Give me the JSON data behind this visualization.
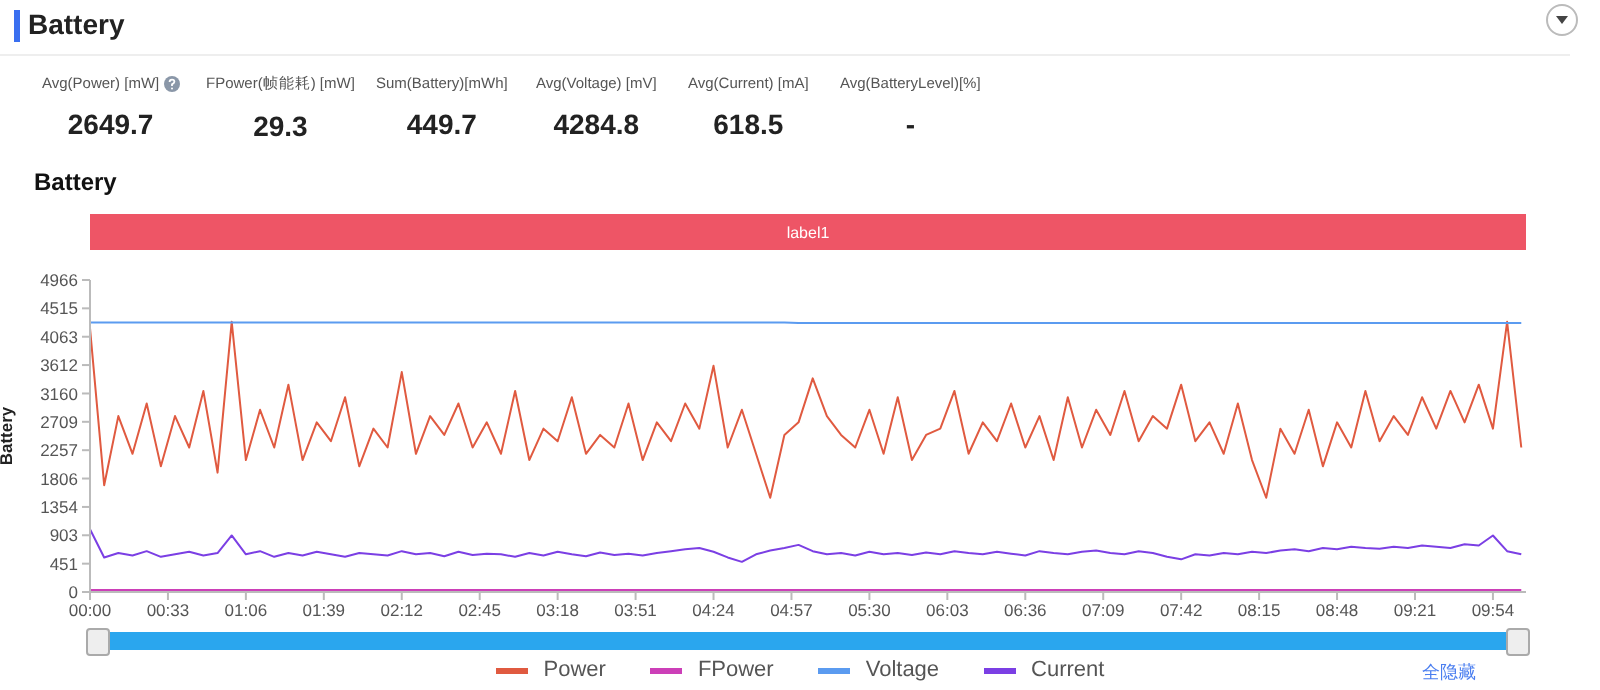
{
  "chart_data": {
    "type": "line",
    "title": "Battery",
    "subtitle": "Battery",
    "ylabel": "Battery",
    "annotations": [
      "Avg(Power) [mW]",
      "2649.7",
      "FPower(帧能耗) [mW]",
      "29.3",
      "Sum(Battery)[mWh]",
      "449.7",
      "Avg(Voltage) [mV]",
      "4284.8",
      "Avg(Current) [mA]",
      "618.5",
      "Avg(BatteryLevel)[%]",
      "-",
      "全隐藏"
    ],
    "bands": [
      {
        "axis": "x",
        "from": 0,
        "to": 608,
        "label": "label1"
      }
    ],
    "x": [
      0,
      6,
      12,
      18,
      24,
      30,
      36,
      42,
      48,
      54,
      60,
      66,
      72,
      78,
      84,
      90,
      96,
      102,
      108,
      114,
      120,
      126,
      132,
      138,
      144,
      150,
      156,
      162,
      168,
      174,
      180,
      186,
      192,
      198,
      204,
      210,
      216,
      222,
      228,
      234,
      240,
      246,
      252,
      258,
      264,
      270,
      276,
      282,
      288,
      294,
      300,
      306,
      312,
      318,
      324,
      330,
      336,
      342,
      348,
      354,
      360,
      366,
      372,
      378,
      384,
      390,
      396,
      402,
      408,
      414,
      420,
      426,
      432,
      438,
      444,
      450,
      456,
      462,
      468,
      474,
      480,
      486,
      492,
      498,
      504,
      510,
      516,
      522,
      528,
      534,
      540,
      546,
      552,
      558,
      564,
      570,
      576,
      582,
      588,
      594,
      600,
      606
    ],
    "series": [
      {
        "name": "Power",
        "color": "#e05a40",
        "values": [
          4200,
          1700,
          2800,
          2200,
          3000,
          2000,
          2800,
          2300,
          3200,
          1900,
          4300,
          2100,
          2900,
          2300,
          3300,
          2100,
          2700,
          2400,
          3100,
          2000,
          2600,
          2300,
          3500,
          2200,
          2800,
          2500,
          3000,
          2300,
          2700,
          2200,
          3200,
          2100,
          2600,
          2400,
          3100,
          2200,
          2500,
          2300,
          3000,
          2100,
          2700,
          2400,
          3000,
          2600,
          3600,
          2300,
          2900,
          2200,
          1500,
          2500,
          2700,
          3400,
          2800,
          2500,
          2300,
          2900,
          2200,
          3100,
          2100,
          2500,
          2600,
          3200,
          2200,
          2700,
          2400,
          3000,
          2300,
          2800,
          2100,
          3100,
          2300,
          2900,
          2500,
          3200,
          2400,
          2800,
          2600,
          3300,
          2400,
          2700,
          2200,
          3000,
          2100,
          1500,
          2600,
          2200,
          2900,
          2000,
          2700,
          2300,
          3200,
          2400,
          2800,
          2500,
          3100,
          2600,
          3200,
          2700,
          3300,
          2600,
          4300,
          2300
        ]
      },
      {
        "name": "FPower",
        "color": "#cc3fb8",
        "values": [
          30,
          30,
          30,
          30,
          30,
          30,
          30,
          30,
          30,
          30,
          30,
          30,
          30,
          30,
          30,
          30,
          30,
          30,
          30,
          30,
          30,
          30,
          30,
          30,
          30,
          30,
          30,
          30,
          30,
          30,
          30,
          30,
          30,
          30,
          30,
          30,
          30,
          30,
          30,
          30,
          30,
          30,
          30,
          30,
          30,
          30,
          30,
          30,
          30,
          30,
          30,
          30,
          30,
          30,
          30,
          30,
          30,
          30,
          30,
          30,
          30,
          30,
          30,
          30,
          30,
          30,
          30,
          30,
          30,
          30,
          30,
          30,
          30,
          30,
          30,
          30,
          30,
          30,
          30,
          30,
          30,
          30,
          30,
          30,
          30,
          30,
          30,
          30,
          30,
          30,
          30,
          30,
          30,
          30,
          30,
          30,
          30,
          30,
          30,
          30,
          30,
          30
        ]
      },
      {
        "name": "Voltage",
        "color": "#5b9bf0",
        "values": [
          4290,
          4290,
          4290,
          4290,
          4290,
          4290,
          4290,
          4290,
          4290,
          4290,
          4290,
          4290,
          4290,
          4290,
          4290,
          4290,
          4290,
          4290,
          4290,
          4290,
          4290,
          4290,
          4290,
          4290,
          4290,
          4290,
          4290,
          4290,
          4290,
          4290,
          4290,
          4290,
          4290,
          4290,
          4290,
          4290,
          4290,
          4290,
          4290,
          4290,
          4290,
          4290,
          4290,
          4290,
          4290,
          4290,
          4290,
          4290,
          4290,
          4290,
          4280,
          4280,
          4280,
          4280,
          4280,
          4280,
          4280,
          4280,
          4280,
          4280,
          4280,
          4280,
          4280,
          4280,
          4280,
          4280,
          4280,
          4280,
          4280,
          4280,
          4280,
          4280,
          4280,
          4280,
          4280,
          4280,
          4280,
          4280,
          4280,
          4280,
          4280,
          4280,
          4280,
          4280,
          4280,
          4280,
          4280,
          4280,
          4280,
          4280,
          4280,
          4280,
          4280,
          4280,
          4280,
          4280,
          4280,
          4280,
          4280,
          4280,
          4280,
          4280
        ]
      },
      {
        "name": "Current",
        "color": "#7b3fe4",
        "values": [
          1000,
          550,
          620,
          580,
          650,
          560,
          600,
          640,
          580,
          620,
          900,
          600,
          650,
          560,
          620,
          580,
          640,
          600,
          560,
          620,
          600,
          580,
          650,
          600,
          620,
          570,
          640,
          590,
          610,
          600,
          560,
          620,
          580,
          640,
          600,
          570,
          630,
          590,
          610,
          580,
          620,
          650,
          680,
          700,
          640,
          550,
          480,
          600,
          660,
          700,
          750,
          650,
          600,
          620,
          580,
          640,
          600,
          620,
          590,
          630,
          600,
          650,
          620,
          600,
          640,
          610,
          580,
          650,
          620,
          600,
          640,
          660,
          620,
          600,
          650,
          620,
          560,
          520,
          600,
          580,
          620,
          600,
          640,
          620,
          660,
          680,
          650,
          700,
          680,
          720,
          700,
          690,
          720,
          700,
          740,
          720,
          700,
          760,
          740,
          900,
          650,
          600
        ]
      }
    ],
    "xlim": [
      0,
      608
    ],
    "xticks": [
      {
        "value": 0,
        "label": "00:00"
      },
      {
        "value": 33,
        "label": "00:33"
      },
      {
        "value": 66,
        "label": "01:06"
      },
      {
        "value": 99,
        "label": "01:39"
      },
      {
        "value": 132,
        "label": "02:12"
      },
      {
        "value": 165,
        "label": "02:45"
      },
      {
        "value": 198,
        "label": "03:18"
      },
      {
        "value": 231,
        "label": "03:51"
      },
      {
        "value": 264,
        "label": "04:24"
      },
      {
        "value": 297,
        "label": "04:57"
      },
      {
        "value": 330,
        "label": "05:30"
      },
      {
        "value": 363,
        "label": "06:03"
      },
      {
        "value": 396,
        "label": "06:36"
      },
      {
        "value": 429,
        "label": "07:09"
      },
      {
        "value": 462,
        "label": "07:42"
      },
      {
        "value": 495,
        "label": "08:15"
      },
      {
        "value": 528,
        "label": "08:48"
      },
      {
        "value": 561,
        "label": "09:21"
      },
      {
        "value": 594,
        "label": "09:54"
      }
    ],
    "ylim": [
      0,
      4966
    ],
    "yticks": [
      0,
      451,
      903,
      1354,
      1806,
      2257,
      2709,
      3160,
      3612,
      4063,
      4515,
      4966
    ],
    "grid": false,
    "legend": "bottom",
    "marker": "none",
    "line_style": "solid"
  }
}
